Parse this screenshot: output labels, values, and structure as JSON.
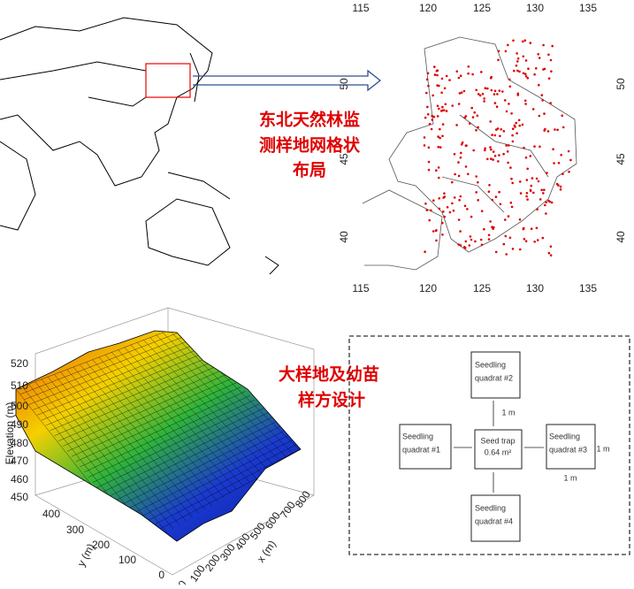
{
  "map_caption": [
    "东北天然林监",
    "测样地网格状",
    "布局"
  ],
  "ne_map": {
    "top_ticks": [
      115,
      120,
      125,
      130,
      135
    ],
    "bottom_ticks": [
      115,
      120,
      125,
      130,
      135
    ],
    "left_ticks": [
      50,
      45,
      40
    ],
    "right_ticks": [
      50,
      45,
      40
    ]
  },
  "surface_plot": {
    "caption": [
      "大样地及幼苗",
      "样方设计"
    ],
    "z_label": "Elevation (m)",
    "z_ticks": [
      520,
      510,
      500,
      490,
      480,
      470,
      460,
      450
    ],
    "y_label": "y (m)",
    "y_ticks": [
      400,
      300,
      200,
      100,
      0
    ],
    "x_label": "x (m)",
    "x_ticks": [
      800,
      700,
      600,
      500,
      400,
      300,
      200,
      100,
      0
    ]
  },
  "design": {
    "quadrats": [
      [
        "Seedling",
        "quadrat #1"
      ],
      [
        "Seedling",
        "quadrat #2"
      ],
      [
        "Seedling",
        "quadrat #3"
      ],
      [
        "Seedling",
        "quadrat #4"
      ]
    ],
    "trap": [
      "Seed trap",
      "0.64 m²"
    ],
    "distances": [
      "1 m",
      "1 m",
      "1 m"
    ]
  }
}
